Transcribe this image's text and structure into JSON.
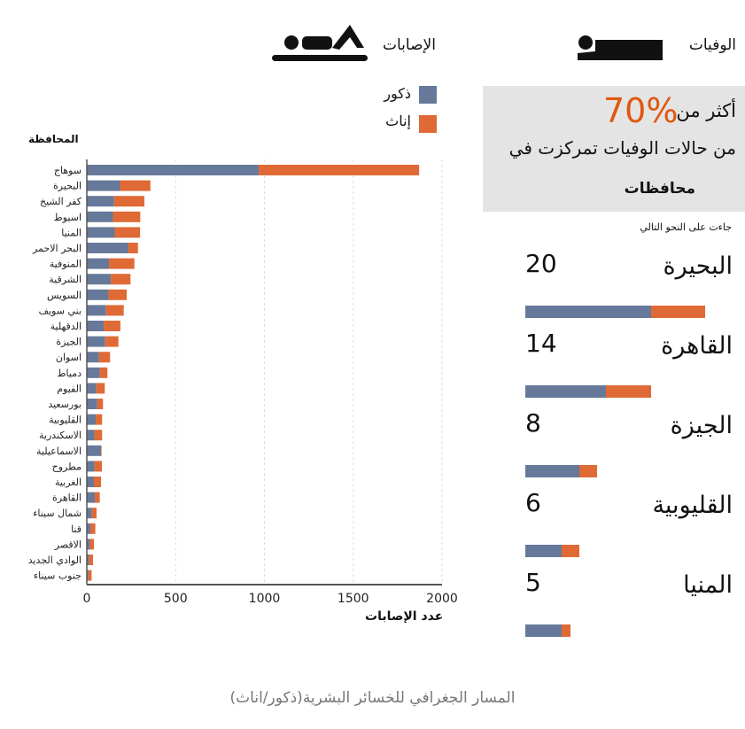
{
  "header": {
    "injuries_label": "الإصابات",
    "deaths_label": "الوفيات",
    "injuries_icon": "injured-person-icon",
    "deaths_icon": "lying-person-icon"
  },
  "legend": [
    {
      "label": "ذكور",
      "color": "#66799a"
    },
    {
      "label": "إناث",
      "color": "#e06a35"
    }
  ],
  "summary": {
    "prefix": "أكثر من",
    "percent": "70%",
    "line2": "من حالات الوفيات تمركزت في",
    "line3": "محافظات",
    "subnote": "جاءت على النحو التالي"
  },
  "deaths": [
    {
      "name": "البحيرة",
      "total": "20",
      "male": 14,
      "female": 6
    },
    {
      "name": "القاهرة",
      "total": "14",
      "male": 9,
      "female": 5
    },
    {
      "name": "الجيزة",
      "total": "8",
      "male": 6,
      "female": 2
    },
    {
      "name": "القليوبية",
      "total": "6",
      "male": 4,
      "female": 2
    },
    {
      "name": "المنيا",
      "total": "5",
      "male": 4,
      "female": 1
    }
  ],
  "caption": "المسار الجغرافي للخسائر البشرية(ذكور/اناث)",
  "chart_data": {
    "type": "bar",
    "orientation": "horizontal",
    "stacked": true,
    "ylabel": "المحافظة",
    "xlabel": "عدد الإصابات",
    "xlim": [
      0,
      2000
    ],
    "xticks": [
      "0",
      "500",
      "1000",
      "1500",
      "2000"
    ],
    "grid": true,
    "categories": [
      "سوهاج",
      "البحيرة",
      "كفر الشيخ",
      "اسيوط",
      "المنيا",
      "البحر الاحمر",
      "المنوفية",
      "الشرقية",
      "السويس",
      "بني سويف",
      "الدقهلية",
      "الجيزة",
      "اسوان",
      "دمياط",
      "الفيوم",
      "بورسعيد",
      "القليوبية",
      "الاسكندرية",
      "الاسماعيلية",
      "مطروح",
      "الغربية",
      "القاهرة",
      "شمال سيناء",
      "قنا",
      "الاقصر",
      "الوادي الجديد",
      "جنوب سيناء"
    ],
    "series": [
      {
        "name": "ذكور",
        "color": "#66799a",
        "values": [
          968,
          187,
          153,
          147,
          157,
          232,
          125,
          135,
          122,
          108,
          95,
          103,
          68,
          73,
          53,
          58,
          50,
          43,
          80,
          43,
          40,
          45,
          28,
          20,
          18,
          12,
          8
        ]
      },
      {
        "name": "إناث",
        "color": "#e06a35",
        "values": [
          903,
          171,
          171,
          154,
          143,
          56,
          143,
          111,
          103,
          100,
          94,
          75,
          63,
          43,
          48,
          33,
          36,
          43,
          3,
          42,
          40,
          28,
          27,
          28,
          22,
          23,
          19
        ]
      }
    ]
  }
}
